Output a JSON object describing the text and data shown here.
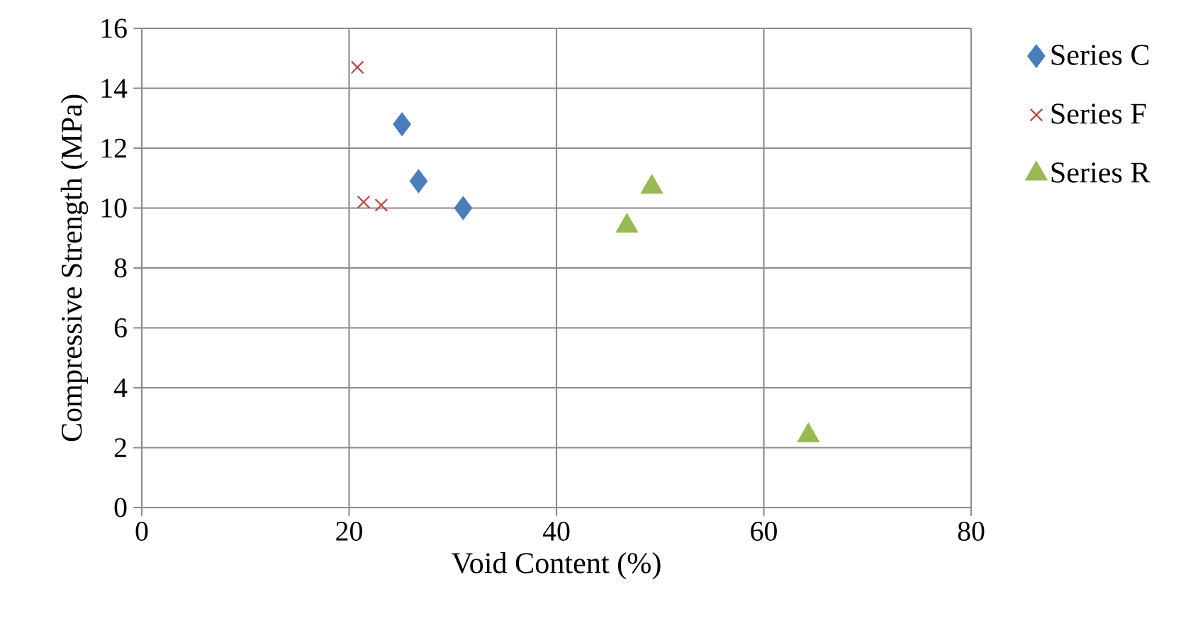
{
  "chart_data": {
    "type": "scatter",
    "xlabel": "Void Content (%)",
    "ylabel": "Compressive Strength (MPa)",
    "xlim": [
      0,
      80
    ],
    "xticks": [
      0,
      20,
      40,
      60,
      80
    ],
    "ylim": [
      0,
      16
    ],
    "yticks": [
      0,
      2,
      4,
      6,
      8,
      10,
      12,
      14,
      16
    ],
    "grid": true,
    "legend": "right",
    "series": [
      {
        "name": "Series C",
        "color": "#4a7ebb",
        "marker": "diamond",
        "x": [
          25.1,
          26.7,
          31.0
        ],
        "values": [
          12.8,
          10.9,
          10.0
        ]
      },
      {
        "name": "Series F",
        "color": "#be4b48",
        "marker": "cross",
        "x": [
          20.8,
          21.4,
          23.1
        ],
        "values": [
          14.7,
          10.2,
          10.1
        ]
      },
      {
        "name": "Series R",
        "color": "#98b954",
        "marker": "triangle",
        "x": [
          46.8,
          49.2,
          64.3
        ],
        "values": [
          9.4,
          10.7,
          2.4
        ]
      }
    ]
  }
}
